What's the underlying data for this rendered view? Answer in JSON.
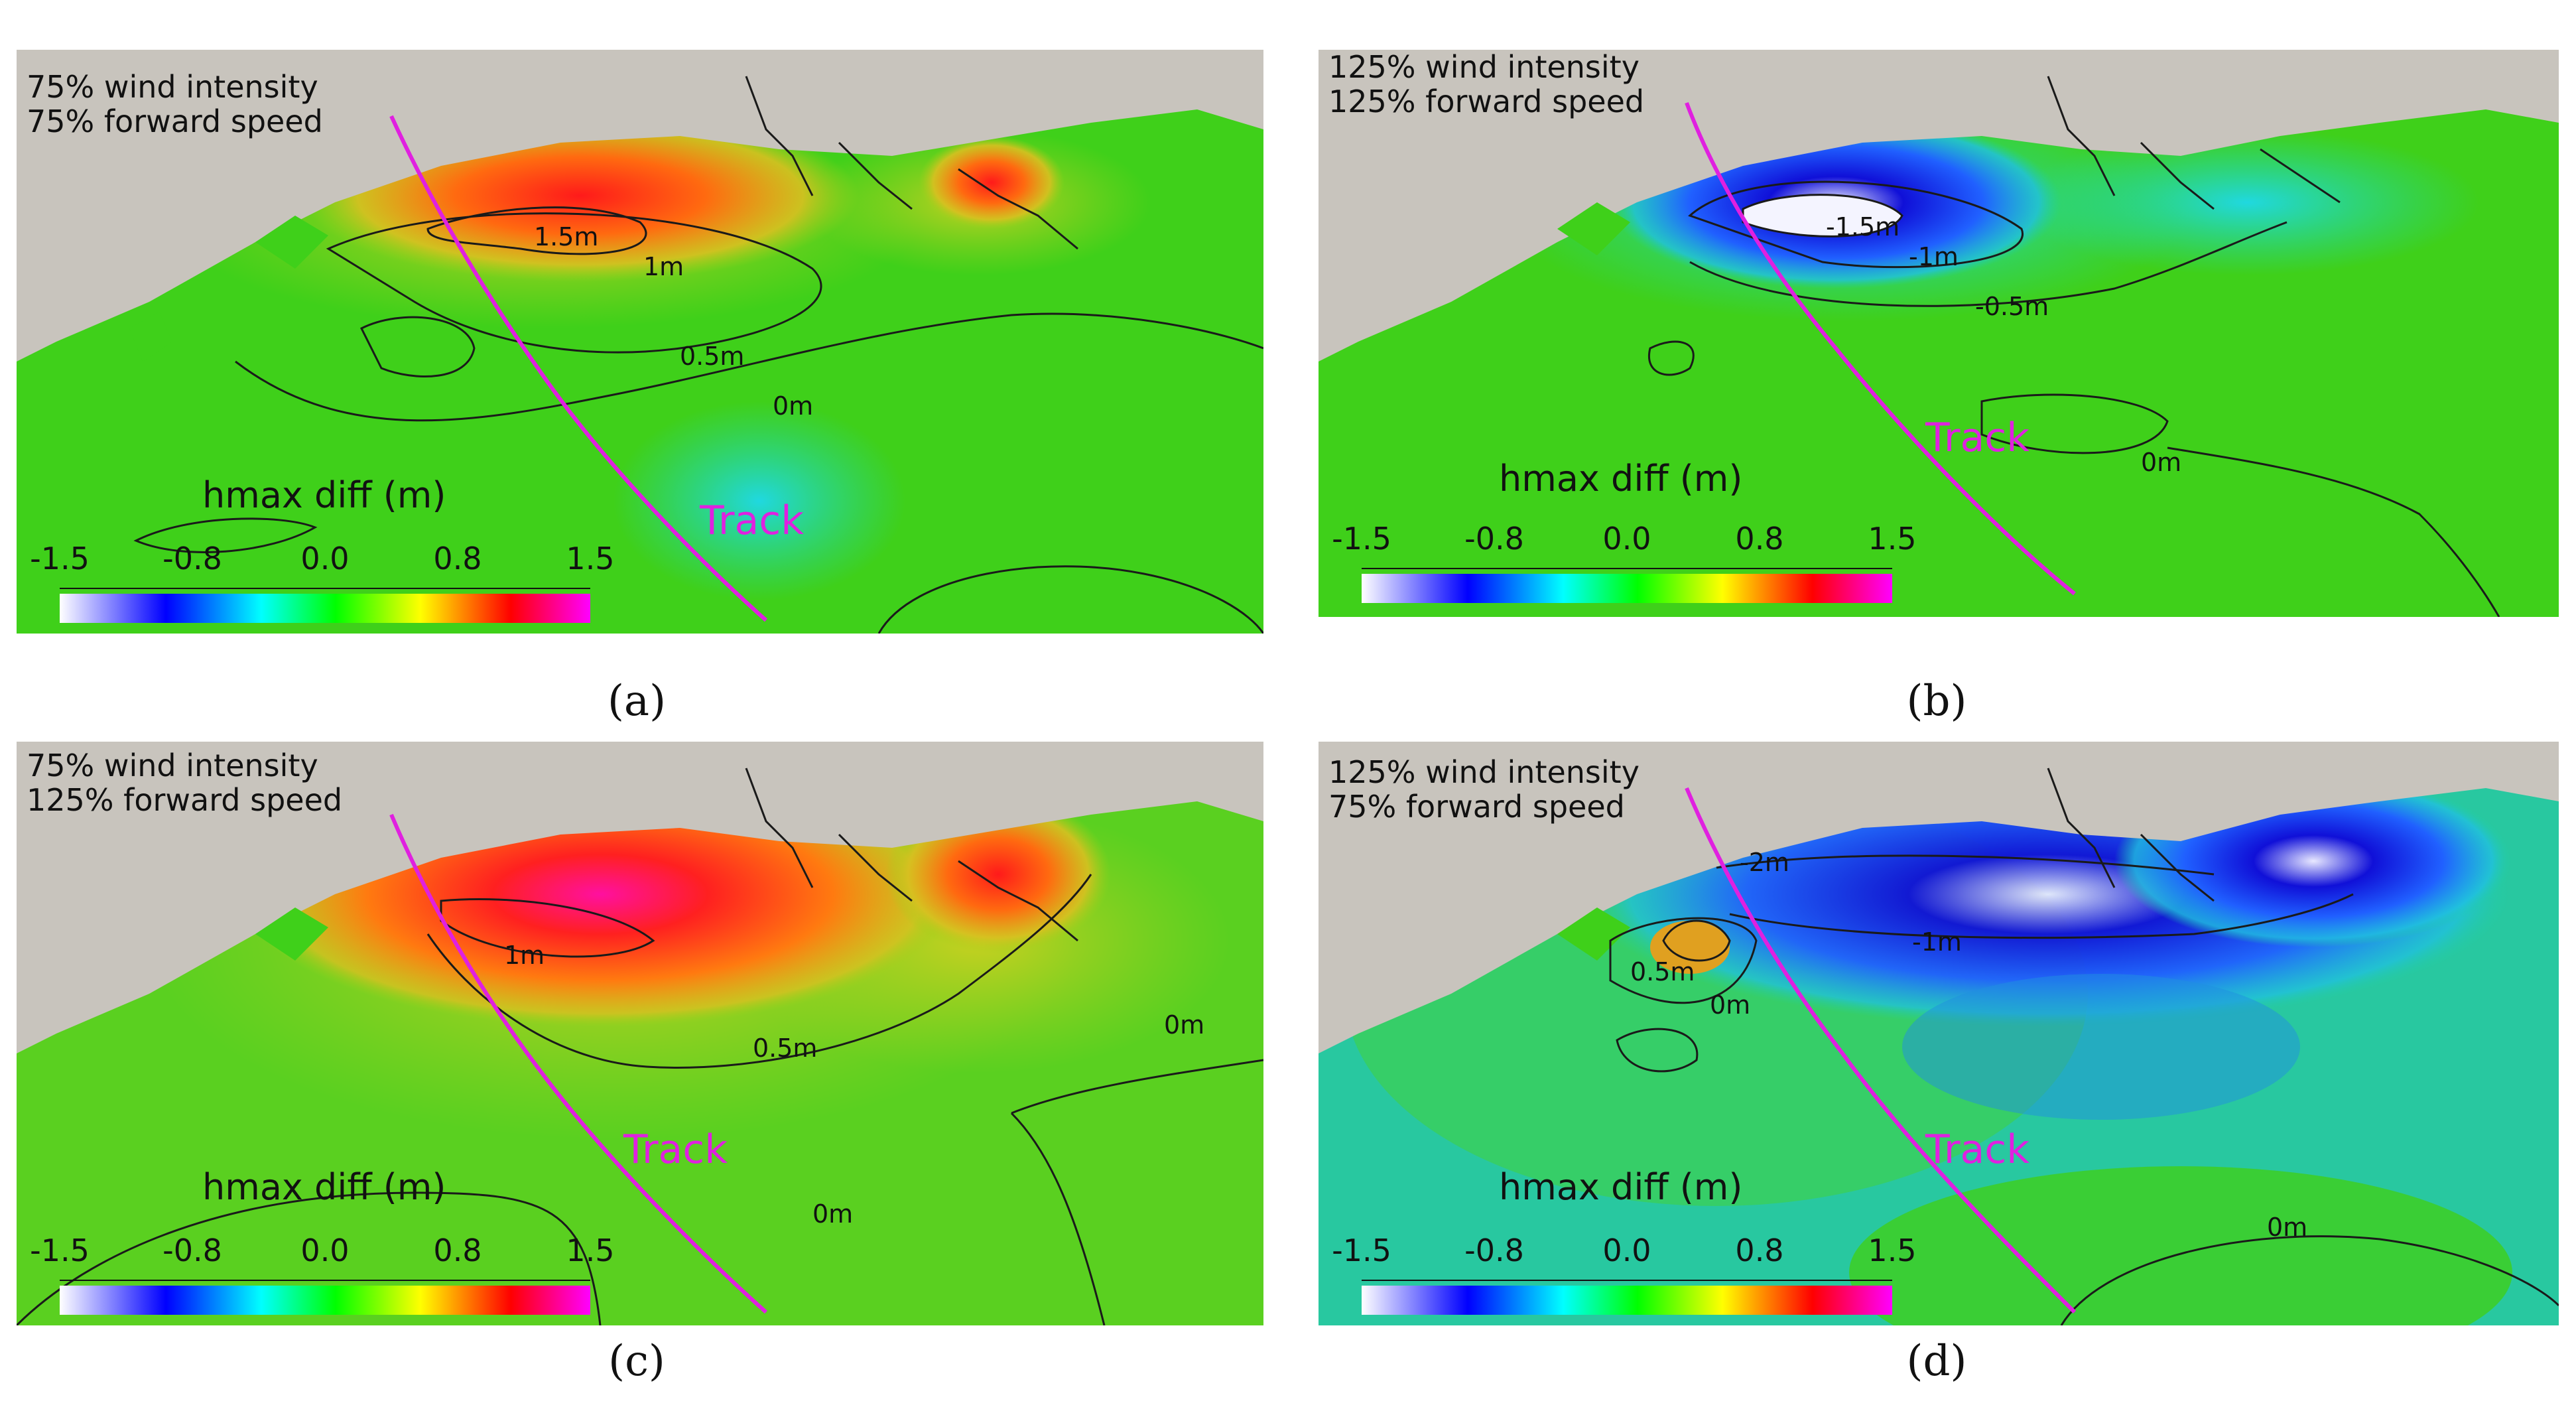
{
  "colors": {
    "land": "#c8c4bd",
    "field_green": "#3fd01a",
    "track": "#e020e0",
    "contour": "#1a1a1a"
  },
  "colorbar": {
    "title": "hmax diff (m)",
    "ticks": [
      "-1.5",
      "-0.8",
      "0.0",
      "0.8",
      "1.5"
    ],
    "stops": [
      "#ffffff",
      "#0000ff",
      "#00ffff",
      "#00ff00",
      "#ffff00",
      "#ff0000",
      "#ff00ff"
    ]
  },
  "panels": [
    {
      "id": "a",
      "caption": "(a)",
      "scenario_line1": "75% wind intensity",
      "scenario_line2": "75% forward speed",
      "track_label": "Track",
      "contour_labels": [
        "1.5m",
        "1m",
        "0.5m",
        "0m"
      ]
    },
    {
      "id": "b",
      "caption": "(b)",
      "scenario_line1": "125% wind intensity",
      "scenario_line2": "125% forward speed",
      "track_label": "Track",
      "contour_labels": [
        "-1.5m",
        "-1m",
        "-0.5m",
        "0m"
      ]
    },
    {
      "id": "c",
      "caption": "(c)",
      "scenario_line1": "75%  wind intensity",
      "scenario_line2": "125% forward speed",
      "track_label": "Track",
      "contour_labels": [
        "1m",
        "0.5m",
        "0m",
        "0m"
      ]
    },
    {
      "id": "d",
      "caption": "(d)",
      "scenario_line1": "125% wind intensity",
      "scenario_line2": "75%  forward speed",
      "track_label": "Track",
      "contour_labels": [
        "-2m",
        "-1m",
        "0.5m",
        "0m",
        "0m"
      ]
    }
  ]
}
